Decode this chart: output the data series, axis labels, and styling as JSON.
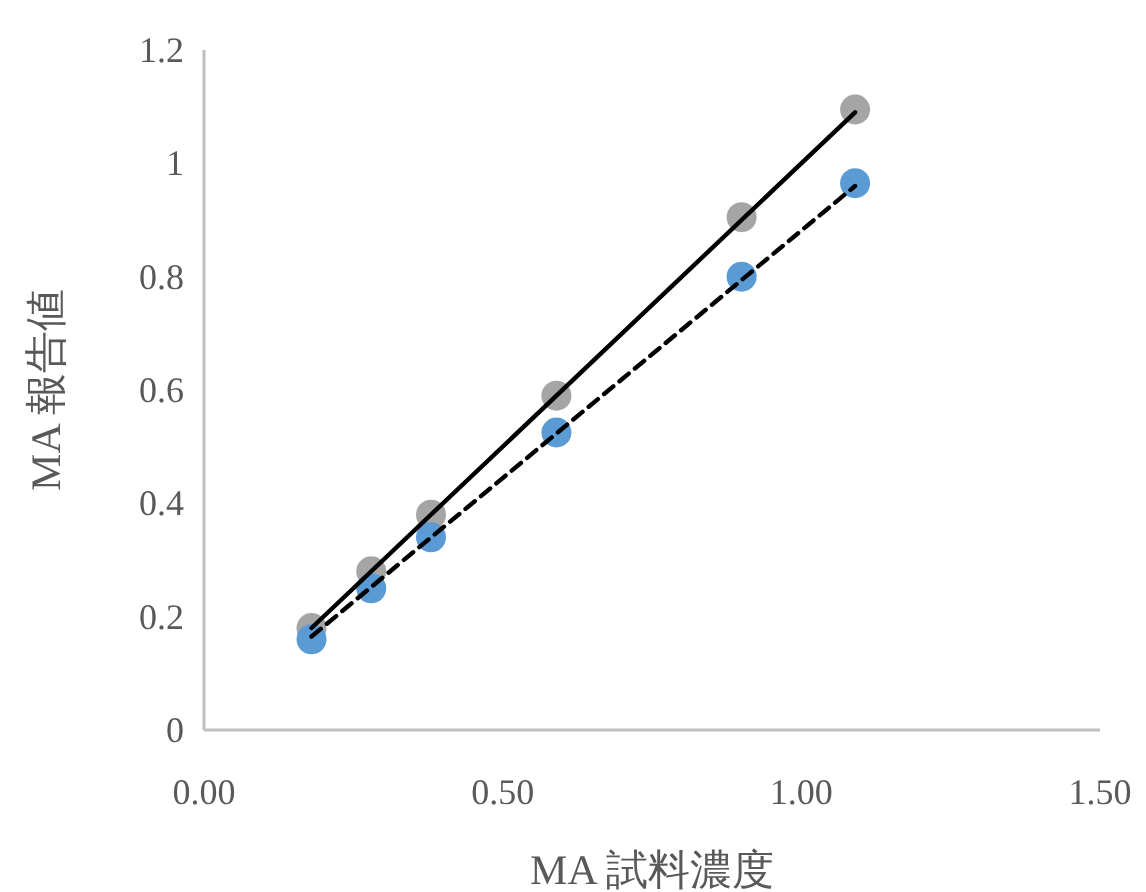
{
  "chart_data": {
    "type": "scatter",
    "xlabel": "MA 試料濃度",
    "ylabel": "MA 報告値",
    "xlim": [
      0,
      1.5
    ],
    "ylim": [
      0,
      1.2
    ],
    "xticks": [
      {
        "value": 0,
        "label": "0.00"
      },
      {
        "value": 0.5,
        "label": "0.50"
      },
      {
        "value": 1,
        "label": "1.00"
      },
      {
        "value": 1.5,
        "label": "1.50"
      }
    ],
    "yticks": [
      0,
      0.2,
      0.4,
      0.6,
      0.8,
      1,
      1.2
    ],
    "grid": false,
    "marker": "circle",
    "series": [
      {
        "type": "scatter",
        "color": "#a5a5a5",
        "x": [
          0.18,
          0.28,
          0.38,
          0.59,
          0.9,
          1.09
        ],
        "values": [
          0.18,
          0.28,
          0.38,
          0.59,
          0.905,
          1.095
        ]
      },
      {
        "type": "scatter",
        "color": "#5b9bd5",
        "x": [
          0.18,
          0.28,
          0.38,
          0.59,
          0.9,
          1.09
        ],
        "values": [
          0.16,
          0.25,
          0.34,
          0.525,
          0.8,
          0.965
        ]
      },
      {
        "type": "line",
        "color": "#000000",
        "line_style": "solid",
        "marker": "none",
        "x": [
          0.18,
          1.09
        ],
        "values": [
          0.18,
          1.09
        ]
      },
      {
        "type": "line",
        "color": "#000000",
        "line_style": "dashed",
        "marker": "none",
        "x": [
          0.18,
          1.09
        ],
        "values": [
          0.165,
          0.96
        ]
      }
    ]
  }
}
